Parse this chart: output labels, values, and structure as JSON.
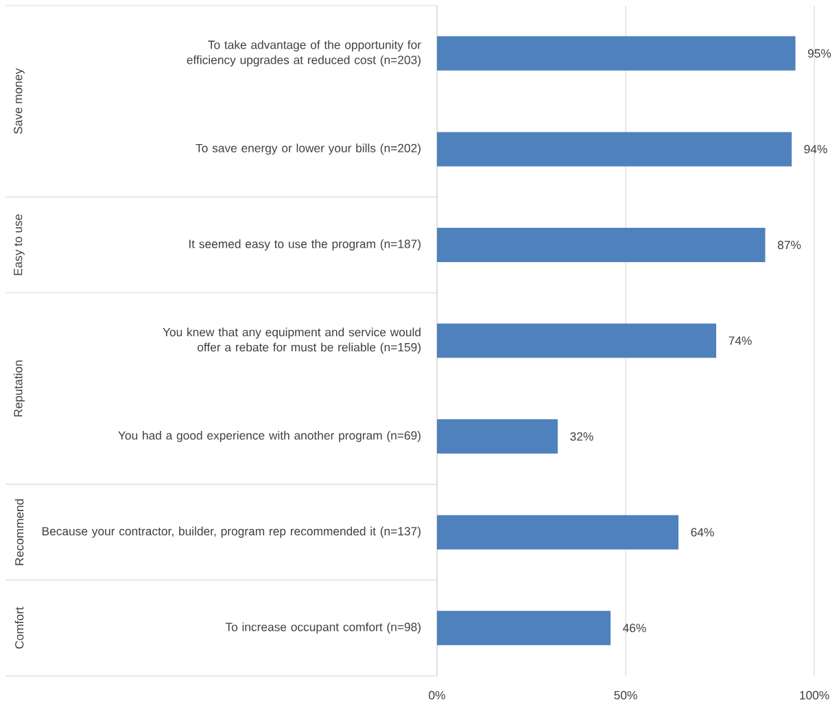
{
  "chart_data": {
    "type": "bar",
    "orientation": "horizontal",
    "categories": [
      "To take advantage of the opportunity for efficiency upgrades at reduced cost (n=203)",
      "To save energy or lower your bills (n=202)",
      "It seemed easy to use the program (n=187)",
      "You knew that any equipment and service would offer a rebate for must be reliable (n=159)",
      "You had a good experience with another program (n=69)",
      "Because your contractor, builder, program rep recommended it (n=137)",
      "To increase occupant comfort (n=98)"
    ],
    "values": [
      95,
      94,
      87,
      74,
      32,
      64,
      46
    ],
    "value_labels": [
      "95%",
      "94%",
      "87%",
      "74%",
      "32%",
      "64%",
      "46%"
    ],
    "color": "#4f81bd",
    "xlim": [
      0,
      100
    ],
    "xticks": [
      {
        "value": 0,
        "label": "0%"
      },
      {
        "value": 50,
        "label": "50%"
      },
      {
        "value": 100,
        "label": "100%"
      }
    ],
    "grid": "x",
    "annotations": [
      "Save money",
      "Easy to use",
      "Reputation",
      "Recommend",
      "Comfort"
    ]
  }
}
